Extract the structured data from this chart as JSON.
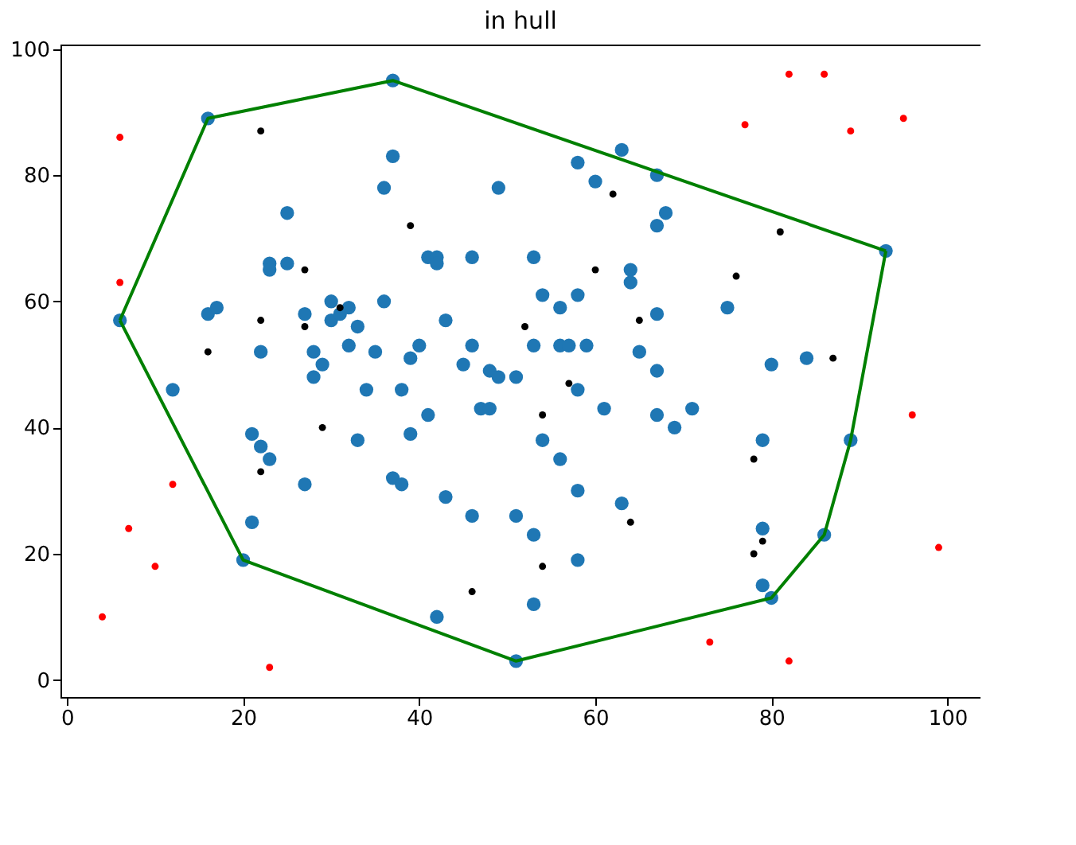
{
  "chart_data": {
    "type": "scatter",
    "title": "in hull",
    "xlim": [
      -0.75,
      103.75
    ],
    "ylim": [
      -2.7,
      100.7
    ],
    "xticks": [
      0,
      20,
      40,
      60,
      80,
      100
    ],
    "yticks": [
      0,
      20,
      40,
      60,
      80,
      100
    ],
    "grid": false,
    "marker": "circle",
    "series": [
      {
        "color": "#1f77b4",
        "x": [
          16,
          37,
          37,
          36,
          25,
          23,
          23,
          25,
          16,
          17,
          6,
          27,
          30,
          32,
          30,
          31,
          33,
          36,
          43,
          41,
          42,
          42,
          46,
          49,
          22,
          28,
          32,
          35,
          39,
          40,
          45,
          46,
          48,
          49,
          51,
          58,
          63,
          60,
          67,
          68,
          67,
          93,
          53,
          64,
          64,
          54,
          56,
          58,
          67,
          75,
          53,
          56,
          57,
          59,
          65,
          67,
          80,
          84,
          12,
          21,
          22,
          23,
          27,
          21,
          20,
          42,
          51,
          28,
          29,
          34,
          38,
          41,
          33,
          39,
          37,
          38,
          43,
          46,
          51,
          47,
          48,
          58,
          61,
          67,
          69,
          71,
          54,
          56,
          58,
          63,
          53,
          58,
          53,
          79,
          89,
          79,
          86,
          79,
          80
        ],
        "values": [
          89,
          95,
          83,
          78,
          74,
          66,
          65,
          66,
          58,
          59,
          57,
          58,
          60,
          59,
          57,
          58,
          56,
          60,
          57,
          67,
          67,
          66,
          67,
          78,
          52,
          52,
          53,
          52,
          51,
          53,
          50,
          53,
          49,
          48,
          48,
          82,
          84,
          79,
          80,
          74,
          72,
          68,
          67,
          65,
          63,
          61,
          59,
          61,
          58,
          59,
          53,
          53,
          53,
          53,
          52,
          49,
          50,
          51,
          46,
          39,
          37,
          35,
          31,
          25,
          19,
          10,
          3,
          48,
          50,
          46,
          46,
          42,
          38,
          39,
          32,
          31,
          29,
          26,
          26,
          43,
          43,
          46,
          43,
          42,
          40,
          43,
          38,
          35,
          30,
          28,
          23,
          19,
          12,
          38,
          38,
          24,
          23,
          15,
          13
        ]
      },
      {
        "color": "#000000",
        "x": [
          22,
          39,
          27,
          31,
          22,
          27,
          16,
          62,
          81,
          60,
          76,
          52,
          65,
          87,
          29,
          22,
          46,
          57,
          54,
          78,
          64,
          79,
          78,
          54
        ],
        "values": [
          87,
          72,
          65,
          59,
          57,
          56,
          52,
          77,
          71,
          65,
          64,
          56,
          57,
          51,
          40,
          33,
          14,
          47,
          42,
          35,
          25,
          22,
          20,
          18
        ]
      },
      {
        "color": "#ff0000",
        "x": [
          6,
          6,
          82,
          86,
          77,
          89,
          95,
          12,
          7,
          10,
          4,
          23,
          96,
          99,
          73,
          82
        ],
        "values": [
          86,
          63,
          96,
          96,
          88,
          87,
          89,
          31,
          24,
          18,
          10,
          2,
          42,
          21,
          6,
          3
        ]
      },
      {
        "type": "line",
        "color": "#008000",
        "marker": "none",
        "x": [
          6,
          16,
          37,
          93
        ],
        "values": [
          57,
          89,
          95,
          68
        ]
      },
      {
        "type": "line",
        "color": "#008000",
        "marker": "none",
        "x": [
          6,
          20,
          51,
          80,
          86,
          89,
          93
        ],
        "values": [
          57,
          19,
          3,
          13,
          23,
          38,
          68
        ]
      }
    ]
  }
}
